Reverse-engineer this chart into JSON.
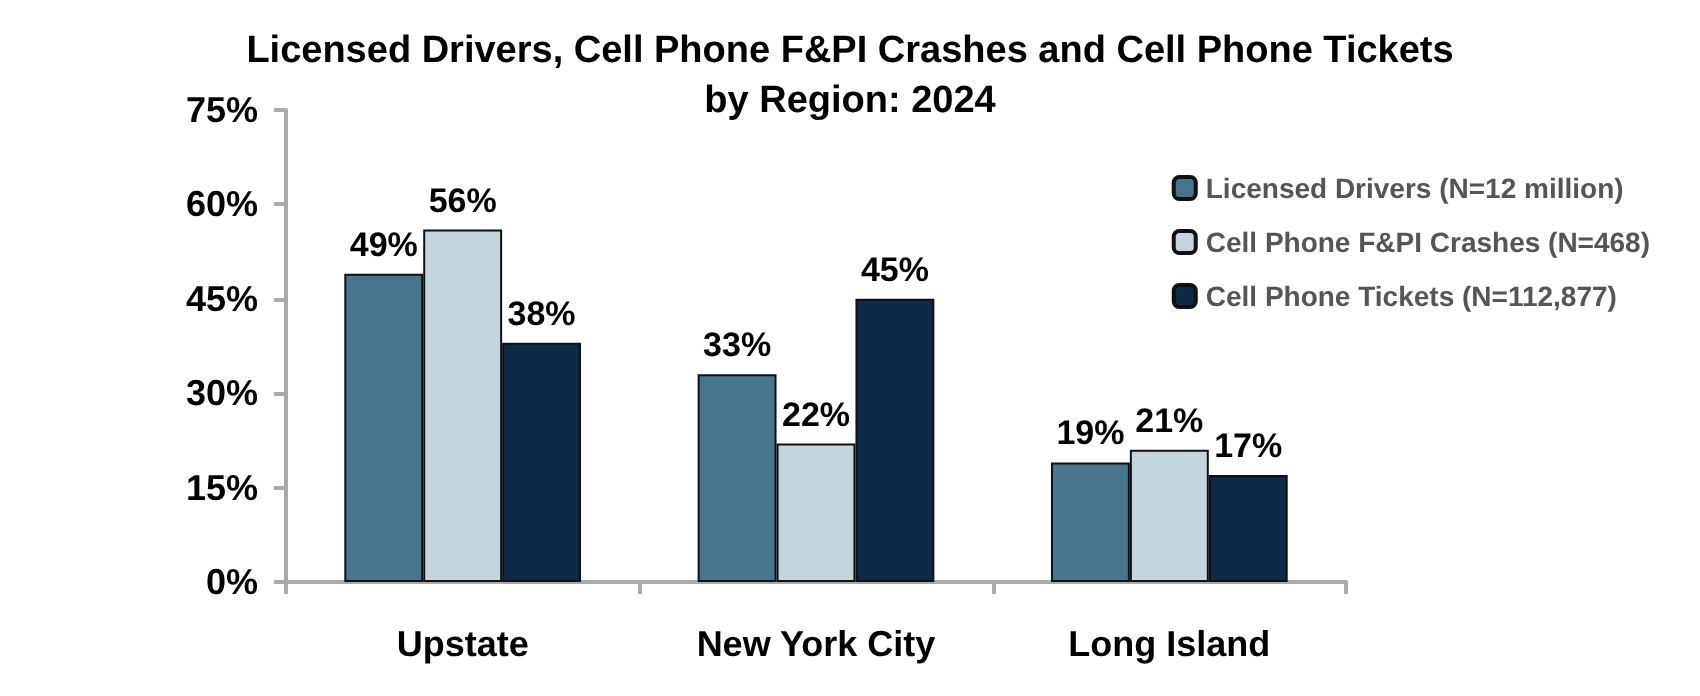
{
  "chart_data": {
    "type": "bar",
    "title": "Licensed Drivers, Cell Phone F&PI Crashes and Cell Phone Tickets\nby Region: 2024",
    "categories": [
      "Upstate",
      "New York City",
      "Long Island"
    ],
    "series": [
      {
        "name": "Licensed Drivers (N=12 million)",
        "color": "#46758c",
        "values": [
          49,
          33,
          19
        ],
        "value_labels": [
          "49%",
          "33%",
          "19%"
        ]
      },
      {
        "name": "Cell Phone F&PI Crashes (N=468)",
        "color": "#c5d5dd",
        "values": [
          56,
          22,
          21
        ],
        "value_labels": [
          "56%",
          "22%",
          "21%"
        ]
      },
      {
        "name": "Cell Phone Tickets (N=112,877)",
        "color": "#0e2a46",
        "values": [
          38,
          45,
          17
        ],
        "value_labels": [
          "38%",
          "45%",
          "17%"
        ]
      }
    ],
    "ylim": [
      0,
      75
    ],
    "yticks": [
      {
        "value": 0,
        "label": "0%"
      },
      {
        "value": 15,
        "label": "15%"
      },
      {
        "value": 30,
        "label": "30%"
      },
      {
        "value": 45,
        "label": "45%"
      },
      {
        "value": 60,
        "label": "60%"
      },
      {
        "value": 75,
        "label": "75%"
      }
    ],
    "grid": false,
    "legend": "top right"
  }
}
